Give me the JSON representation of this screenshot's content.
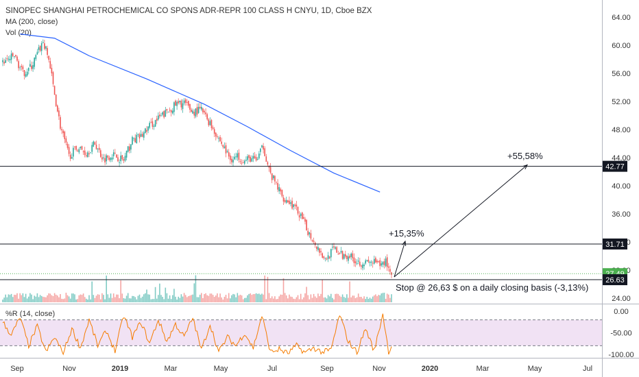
{
  "header": {
    "title": "SINOPEC SHANGHAI PETROCHEMICAL CO SPONS ADR-REPR 100 CLASS H CNYU, 1D, Cboe BZX",
    "ma_label": "MA (200, close)",
    "vol_label": "Vol (20)"
  },
  "indicator": {
    "label": "%R (14, close)",
    "ticks": [
      "0.00",
      "-50.00",
      "-100.00"
    ]
  },
  "annotations": {
    "target1": "+15,35%",
    "target2": "+55,58%",
    "stop_text": "Stop @ 26,63 $ on a daily closing basis (-3,13%)"
  },
  "colors": {
    "up": "#26a69a",
    "down": "#ef5350",
    "ma": "#2962ff",
    "wr": "#f57c00",
    "wr_band": "#e1bee7",
    "line": "#131722",
    "last_price": "#4caf50"
  },
  "chart_data": {
    "type": "candlestick",
    "title": "SINOPEC SHANGHAI PETROCHEMICAL CO SPONS ADR-REPR 100 CLASS H CNYU, 1D, Cboe BZX",
    "x_ticks": [
      "Sep",
      "Nov",
      "2019",
      "Mar",
      "May",
      "Jul",
      "Sep",
      "Nov",
      "2020",
      "Mar",
      "May",
      "Jul"
    ],
    "y_ticks": [
      "64.00",
      "60.00",
      "56.00",
      "52.00",
      "48.00",
      "44.00",
      "40.00",
      "36.00",
      "32.00",
      "28.00",
      "24.00"
    ],
    "ylim": [
      24,
      65
    ],
    "price_anchors": [
      [
        0,
        57.5
      ],
      [
        8,
        58.5
      ],
      [
        14,
        56.0
      ],
      [
        20,
        57.0
      ],
      [
        28,
        60.5
      ],
      [
        32,
        58.0
      ],
      [
        36,
        53.0
      ],
      [
        40,
        48.5
      ],
      [
        46,
        44.2
      ],
      [
        52,
        45.5
      ],
      [
        58,
        44.6
      ],
      [
        64,
        46.0
      ],
      [
        70,
        43.8
      ],
      [
        76,
        44.5
      ],
      [
        84,
        43.6
      ],
      [
        90,
        46.5
      ],
      [
        96,
        47.0
      ],
      [
        102,
        48.5
      ],
      [
        108,
        49.5
      ],
      [
        114,
        50.5
      ],
      [
        120,
        51.5
      ],
      [
        126,
        51.8
      ],
      [
        132,
        50.5
      ],
      [
        138,
        50.8
      ],
      [
        142,
        49.5
      ],
      [
        146,
        48.2
      ],
      [
        152,
        46.0
      ],
      [
        158,
        43.8
      ],
      [
        164,
        44.2
      ],
      [
        168,
        43.5
      ],
      [
        172,
        43.9
      ],
      [
        176,
        43.6
      ],
      [
        181,
        45.6
      ],
      [
        186,
        41.5
      ],
      [
        190,
        40.2
      ],
      [
        194,
        38.5
      ],
      [
        200,
        37.5
      ],
      [
        206,
        36.0
      ],
      [
        212,
        33.5
      ],
      [
        218,
        31.5
      ],
      [
        224,
        29.5
      ],
      [
        230,
        31.0
      ],
      [
        236,
        30.0
      ],
      [
        240,
        30.2
      ],
      [
        246,
        29.2
      ],
      [
        252,
        29.0
      ],
      [
        258,
        29.1
      ],
      [
        262,
        28.6
      ],
      [
        266,
        29.3
      ],
      [
        270,
        27.4
      ]
    ],
    "ma200": [
      [
        12,
        61.6
      ],
      [
        36,
        61.0
      ],
      [
        60,
        58.5
      ],
      [
        100,
        55.2
      ],
      [
        140,
        51.6
      ],
      [
        170,
        48.4
      ],
      [
        200,
        45.0
      ],
      [
        230,
        41.8
      ],
      [
        262,
        39.1
      ]
    ],
    "wr_anchors": [
      [
        0,
        -25
      ],
      [
        6,
        -55
      ],
      [
        12,
        -15
      ],
      [
        18,
        -80
      ],
      [
        24,
        -35
      ],
      [
        30,
        -95
      ],
      [
        36,
        -60
      ],
      [
        42,
        -98
      ],
      [
        48,
        -40
      ],
      [
        54,
        -85
      ],
      [
        60,
        -20
      ],
      [
        66,
        -80
      ],
      [
        72,
        -45
      ],
      [
        78,
        -92
      ],
      [
        84,
        -10
      ],
      [
        90,
        -60
      ],
      [
        96,
        -25
      ],
      [
        102,
        -75
      ],
      [
        108,
        -20
      ],
      [
        114,
        -70
      ],
      [
        120,
        -30
      ],
      [
        126,
        -60
      ],
      [
        132,
        -15
      ],
      [
        138,
        -90
      ],
      [
        144,
        -30
      ],
      [
        150,
        -95
      ],
      [
        156,
        -60
      ],
      [
        162,
        -80
      ],
      [
        168,
        -50
      ],
      [
        174,
        -85
      ],
      [
        180,
        -10
      ],
      [
        186,
        -95
      ],
      [
        192,
        -88
      ],
      [
        198,
        -98
      ],
      [
        204,
        -80
      ],
      [
        210,
        -96
      ],
      [
        216,
        -85
      ],
      [
        222,
        -95
      ],
      [
        228,
        -90
      ],
      [
        234,
        -8
      ],
      [
        240,
        -70
      ],
      [
        246,
        -95
      ],
      [
        252,
        -40
      ],
      [
        258,
        -92
      ],
      [
        264,
        -6
      ],
      [
        268,
        -95
      ],
      [
        270,
        -80
      ]
    ],
    "horizontal_levels": [
      42.77,
      31.71,
      26.63
    ],
    "price_labels": [
      "42.77",
      "31.71",
      "27.49",
      "26.63"
    ],
    "last_price": 27.49,
    "targets": [
      {
        "label": "+15,35%",
        "price": 31.71
      },
      {
        "label": "+55,58%",
        "price": 42.77
      }
    ],
    "stop": 26.63,
    "legend": [
      "MA (200, close)",
      "Vol (20)"
    ],
    "grid": true
  }
}
